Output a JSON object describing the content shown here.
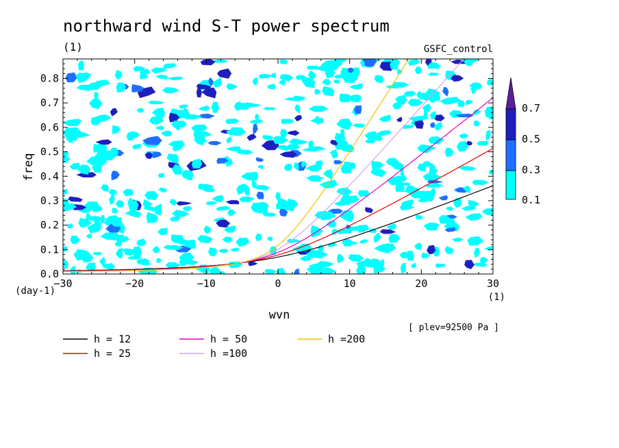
{
  "chart_data": {
    "type": "heatmap",
    "title": "northward wind S-T power spectrum",
    "subtitle_left": "(1)",
    "subtitle_right": "GSFC_control",
    "xlabel": "wvn",
    "ylabel": "freq",
    "x_unit": "(1)",
    "y_unit": "(day-1)",
    "xlim": [
      -30,
      30
    ],
    "ylim": [
      0,
      0.88
    ],
    "xticks": [
      -30,
      -20,
      -10,
      0,
      10,
      20,
      30
    ],
    "yticks": [
      0.0,
      0.1,
      0.2,
      0.3,
      0.4,
      0.5,
      0.6,
      0.7,
      0.8
    ],
    "annotation": "[ plev=92500 Pa ]",
    "colorbar": {
      "levels": [
        "0.1",
        "0.3",
        "0.5",
        "0.7"
      ],
      "colors": [
        "#00ffff",
        "#1e6fff",
        "#1f1fbf",
        "#5a1f9f"
      ]
    },
    "contours": [
      {
        "label": "h = 12",
        "color": "#000000",
        "equiv_depth": 12
      },
      {
        "label": "h = 25",
        "color": "#e00000",
        "equiv_depth": 25
      },
      {
        "label": "h = 50",
        "color": "#e000c0",
        "equiv_depth": 50
      },
      {
        "label": "h =100",
        "color": "#d8a0e8",
        "equiv_depth": 100
      },
      {
        "label": "h =200",
        "color": "#f0c000",
        "equiv_depth": 200
      }
    ],
    "grid": false,
    "legend_position": "bottom-left",
    "colorbar_position": "right"
  }
}
